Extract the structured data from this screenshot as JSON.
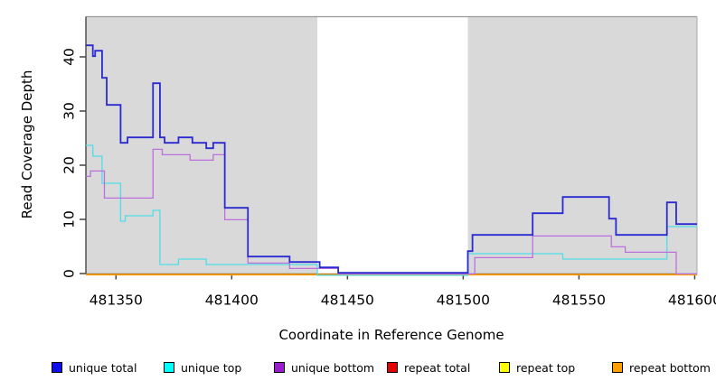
{
  "figure": {
    "x_axis_title": "Coordinate in Reference Genome",
    "y_axis_title": "Read Coverage Depth"
  },
  "chart_data": {
    "type": "line",
    "step": true,
    "title": "",
    "xlabel": "Coordinate in Reference Genome",
    "ylabel": "Read Coverage Depth",
    "xlim": [
      481337,
      481601
    ],
    "ylim": [
      0,
      47
    ],
    "x_ticks": [
      481350,
      481400,
      481450,
      481500,
      481550,
      481600
    ],
    "y_ticks": [
      0,
      10,
      20,
      30,
      40
    ],
    "grid": false,
    "legend_position": "bottom",
    "background_panels": [
      {
        "from": 481337,
        "to": 481437,
        "color": "#d9d9d9"
      },
      {
        "from": 481502,
        "to": 481601,
        "color": "#d9d9d9"
      }
    ],
    "masked_gap_region": {
      "from": 481437,
      "to": 481502,
      "color": "#ffffff"
    },
    "series": [
      {
        "name": "unique total",
        "color": "#2a2ad0",
        "swatch_color": "#0f0fe8",
        "line_width": 1.8,
        "points": [
          [
            481337,
            42
          ],
          [
            481340,
            40
          ],
          [
            481341,
            41
          ],
          [
            481344,
            36
          ],
          [
            481346,
            31
          ],
          [
            481352,
            24
          ],
          [
            481355,
            25
          ],
          [
            481366,
            35
          ],
          [
            481369,
            25
          ],
          [
            481371,
            24
          ],
          [
            481377,
            25
          ],
          [
            481383,
            24
          ],
          [
            481389,
            23
          ],
          [
            481392,
            24
          ],
          [
            481397,
            12
          ],
          [
            481407,
            3
          ],
          [
            481425,
            2
          ],
          [
            481438,
            1
          ],
          [
            481446,
            0
          ],
          [
            481502,
            4
          ],
          [
            481504,
            7
          ],
          [
            481530,
            11
          ],
          [
            481543,
            14
          ],
          [
            481563,
            10
          ],
          [
            481566,
            7
          ],
          [
            481588,
            13
          ],
          [
            481592,
            9
          ]
        ],
        "end_x": 481601
      },
      {
        "name": "unique top",
        "color": "#4fdde8",
        "swatch_color": "#00ffff",
        "line_width": 1.3,
        "points": [
          [
            481337,
            24
          ],
          [
            481340,
            22
          ],
          [
            481344,
            17
          ],
          [
            481352,
            10
          ],
          [
            481354,
            11
          ],
          [
            481366,
            12
          ],
          [
            481369,
            2
          ],
          [
            481377,
            3
          ],
          [
            481389,
            2
          ],
          [
            481437,
            0
          ],
          [
            481502,
            4
          ],
          [
            481543,
            3
          ],
          [
            481588,
            9
          ]
        ],
        "end_x": 481601
      },
      {
        "name": "unique bottom",
        "color": "#bd6fdd",
        "swatch_color": "#9a1cce",
        "line_width": 1.3,
        "points": [
          [
            481337,
            18
          ],
          [
            481339,
            19
          ],
          [
            481345,
            14
          ],
          [
            481366,
            23
          ],
          [
            481370,
            22
          ],
          [
            481382,
            21
          ],
          [
            481392,
            22
          ],
          [
            481397,
            10
          ],
          [
            481407,
            2
          ],
          [
            481425,
            1
          ],
          [
            481446,
            0
          ],
          [
            481505,
            3
          ],
          [
            481530,
            7
          ],
          [
            481564,
            5
          ],
          [
            481570,
            4
          ],
          [
            481592,
            0
          ]
        ],
        "end_x": 481601
      },
      {
        "name": "repeat total",
        "color": "#e60000",
        "swatch_color": "#e60000",
        "line_width": 1.3,
        "points": [
          [
            481337,
            0
          ]
        ],
        "end_x": 481601
      },
      {
        "name": "repeat top",
        "color": "#ffff00",
        "swatch_color": "#ffff00",
        "line_width": 1.3,
        "points": [
          [
            481337,
            0
          ]
        ],
        "end_x": 481601
      },
      {
        "name": "repeat bottom",
        "color": "#ff9f00",
        "swatch_color": "#ff9f00",
        "line_width": 1.8,
        "points": [
          [
            481337,
            0
          ]
        ],
        "end_x": 481601
      }
    ],
    "draw_order": [
      "repeat total",
      "repeat top",
      "repeat bottom",
      "unique top",
      "unique bottom",
      "unique total"
    ]
  },
  "legend": {
    "items": [
      {
        "label": "unique total",
        "color": "#0f0fe8"
      },
      {
        "label": "unique top",
        "color": "#00ffff"
      },
      {
        "label": "unique bottom",
        "color": "#9a1cce"
      },
      {
        "label": "repeat total",
        "color": "#e60000"
      },
      {
        "label": "repeat top",
        "color": "#ffff00"
      },
      {
        "label": "repeat bottom",
        "color": "#ff9f00"
      }
    ]
  }
}
